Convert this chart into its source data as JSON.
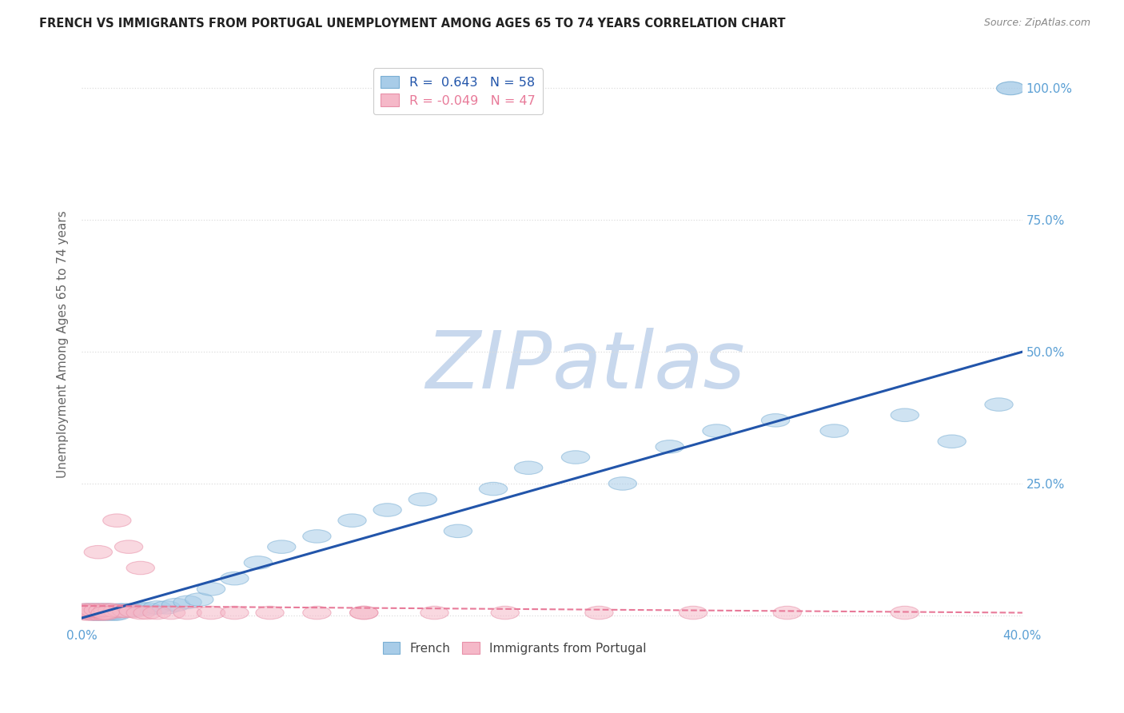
{
  "title": "FRENCH VS IMMIGRANTS FROM PORTUGAL UNEMPLOYMENT AMONG AGES 65 TO 74 YEARS CORRELATION CHART",
  "source": "Source: ZipAtlas.com",
  "ylabel": "Unemployment Among Ages 65 to 74 years",
  "xlim": [
    0.0,
    0.4
  ],
  "ylim": [
    -0.02,
    1.05
  ],
  "french_R": 0.643,
  "french_N": 58,
  "portugal_R": -0.049,
  "portugal_N": 47,
  "french_color": "#a8cce8",
  "french_edge_color": "#7aafd4",
  "portugal_color": "#f5b8c8",
  "portugal_edge_color": "#e890a8",
  "french_line_color": "#2255aa",
  "portugal_line_color": "#e87a99",
  "watermark_zip_color": "#c8d8ed",
  "watermark_atlas_color": "#c8d8ed",
  "tick_color": "#5a9fd4",
  "ylabel_color": "#666666",
  "title_color": "#222222",
  "source_color": "#888888",
  "grid_color": "#dddddd",
  "french_x": [
    0.002,
    0.003,
    0.004,
    0.005,
    0.006,
    0.007,
    0.008,
    0.009,
    0.01,
    0.011,
    0.012,
    0.013,
    0.014,
    0.015,
    0.003,
    0.005,
    0.007,
    0.009,
    0.002,
    0.004,
    0.006,
    0.008,
    0.01,
    0.012,
    0.014,
    0.016,
    0.018,
    0.02,
    0.022,
    0.025,
    0.028,
    0.032,
    0.036,
    0.04,
    0.045,
    0.05,
    0.055,
    0.065,
    0.075,
    0.085,
    0.1,
    0.115,
    0.13,
    0.145,
    0.16,
    0.175,
    0.19,
    0.21,
    0.23,
    0.25,
    0.27,
    0.295,
    0.32,
    0.35,
    0.37,
    0.39,
    0.395,
    0.395
  ],
  "french_y": [
    0.005,
    0.005,
    0.005,
    0.003,
    0.003,
    0.005,
    0.003,
    0.003,
    0.005,
    0.003,
    0.003,
    0.005,
    0.003,
    0.003,
    0.008,
    0.008,
    0.008,
    0.008,
    0.01,
    0.01,
    0.01,
    0.01,
    0.01,
    0.01,
    0.008,
    0.01,
    0.01,
    0.01,
    0.01,
    0.012,
    0.012,
    0.015,
    0.015,
    0.02,
    0.025,
    0.03,
    0.05,
    0.07,
    0.1,
    0.13,
    0.15,
    0.18,
    0.2,
    0.22,
    0.16,
    0.24,
    0.28,
    0.3,
    0.25,
    0.32,
    0.35,
    0.37,
    0.35,
    0.38,
    0.33,
    0.4,
    1.0,
    1.0
  ],
  "portugal_x": [
    0.001,
    0.002,
    0.003,
    0.004,
    0.005,
    0.006,
    0.007,
    0.008,
    0.009,
    0.01,
    0.002,
    0.004,
    0.006,
    0.008,
    0.001,
    0.003,
    0.005,
    0.007,
    0.009,
    0.011,
    0.013,
    0.015,
    0.017,
    0.019,
    0.022,
    0.025,
    0.028,
    0.032,
    0.038,
    0.045,
    0.055,
    0.065,
    0.08,
    0.1,
    0.12,
    0.015,
    0.02,
    0.025,
    0.12,
    0.15,
    0.18,
    0.22,
    0.26,
    0.3,
    0.35,
    0.007,
    0.01
  ],
  "portugal_y": [
    0.005,
    0.003,
    0.005,
    0.003,
    0.005,
    0.003,
    0.005,
    0.003,
    0.005,
    0.003,
    0.008,
    0.008,
    0.008,
    0.008,
    0.01,
    0.01,
    0.01,
    0.01,
    0.01,
    0.01,
    0.01,
    0.008,
    0.008,
    0.008,
    0.008,
    0.005,
    0.005,
    0.005,
    0.005,
    0.005,
    0.005,
    0.005,
    0.005,
    0.005,
    0.005,
    0.18,
    0.13,
    0.09,
    0.005,
    0.005,
    0.005,
    0.005,
    0.005,
    0.005,
    0.005,
    0.12,
    0.005
  ],
  "french_line_x0": 0.0,
  "french_line_x1": 0.4,
  "french_line_y0": -0.005,
  "french_line_y1": 0.5,
  "portugal_line_x0": 0.0,
  "portugal_line_x1": 0.4,
  "portugal_line_y0": 0.018,
  "portugal_line_y1": 0.005
}
